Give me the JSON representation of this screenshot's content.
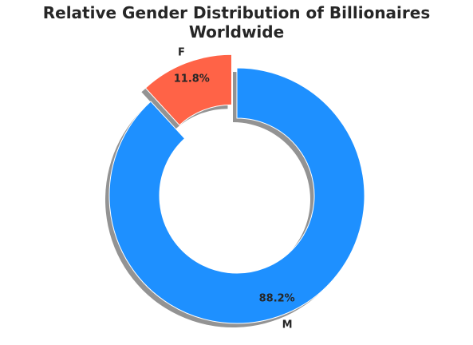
{
  "chart_data": {
    "type": "pie",
    "title": "Relative Gender Distribution of Billionaires Worldwide",
    "slices": [
      {
        "label": "M",
        "value": 88.2,
        "display": "88.2%",
        "color": "#1E90FF",
        "exploded": false
      },
      {
        "label": "F",
        "value": 11.8,
        "display": "11.8%",
        "color": "#FF6347",
        "exploded": true
      }
    ],
    "donut": true,
    "shadow": true,
    "legend": "none"
  }
}
